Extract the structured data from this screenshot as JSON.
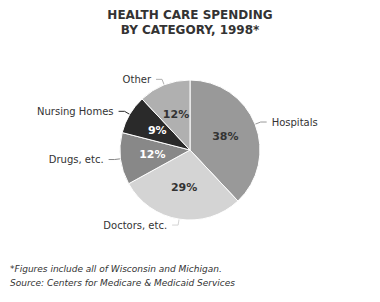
{
  "chart_data": {
    "type": "pie",
    "title": "HEALTH CARE SPENDING",
    "subtitle": "BY CATEGORY, 1998*",
    "categories": [
      "Hospitals",
      "Doctors, etc.",
      "Drugs, etc.",
      "Nursing Homes",
      "Other"
    ],
    "values": [
      38,
      29,
      12,
      9,
      12
    ],
    "value_labels": [
      "38%",
      "29%",
      "12%",
      "9%",
      "12%"
    ],
    "colors": [
      "#999999",
      "#d4d4d4",
      "#888888",
      "#2a2a2a",
      "#b0b0b0"
    ],
    "data_labels": true,
    "annotations": [
      "*Figures include all of Wisconsin and Michigan.",
      "Source: Centers for Medicare & Medicaid Services"
    ]
  }
}
